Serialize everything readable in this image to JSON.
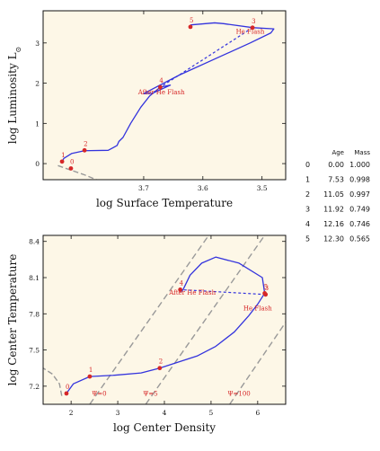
{
  "chart_data": [
    {
      "type": "line",
      "xlabel": "log Surface Temperature",
      "ylabel": "log Luminosity L",
      "ylabel_sub": "⊙",
      "xlim": [
        3.87,
        3.46
      ],
      "ylim": [
        -0.4,
        3.8
      ],
      "xticks": [
        3.7,
        3.6,
        3.5
      ],
      "yticks": [
        0,
        1,
        2,
        3
      ],
      "track": [
        [
          3.838,
          0.05
        ],
        [
          3.835,
          0.13
        ],
        [
          3.822,
          0.25
        ],
        [
          3.8,
          0.32
        ],
        [
          3.76,
          0.33
        ],
        [
          3.745,
          0.45
        ],
        [
          3.742,
          0.55
        ],
        [
          3.735,
          0.65
        ],
        [
          3.722,
          1.0
        ],
        [
          3.705,
          1.4
        ],
        [
          3.69,
          1.68
        ],
        [
          3.672,
          1.9
        ],
        [
          3.655,
          1.95
        ],
        [
          3.685,
          1.75
        ],
        [
          3.7,
          1.74
        ],
        [
          3.64,
          2.2
        ],
        [
          3.58,
          2.6
        ],
        [
          3.52,
          3.0
        ],
        [
          3.485,
          3.25
        ],
        [
          3.48,
          3.35
        ],
        [
          3.515,
          3.38
        ],
        [
          3.565,
          3.48
        ],
        [
          3.58,
          3.5
        ],
        [
          3.62,
          3.45
        ],
        [
          3.621,
          3.4
        ]
      ],
      "flash_segment": [
        [
          3.516,
          3.38
        ],
        [
          3.672,
          1.9
        ]
      ],
      "dashed_extension": [
        [
          3.845,
          -0.05
        ],
        [
          3.8,
          -0.28
        ],
        [
          3.78,
          -0.4
        ]
      ],
      "points": [
        {
          "label": "0",
          "x": 3.823,
          "y": -0.12
        },
        {
          "label": "1",
          "x": 3.838,
          "y": 0.05
        },
        {
          "label": "2",
          "x": 3.8,
          "y": 0.33
        },
        {
          "label": "3",
          "x": 3.516,
          "y": 3.38
        },
        {
          "label": "4",
          "x": 3.672,
          "y": 1.9
        },
        {
          "label": "5",
          "x": 3.621,
          "y": 3.4
        }
      ],
      "annotations": [
        {
          "text": "He Flash",
          "x": 3.52,
          "y": 3.23
        },
        {
          "text": "After He Flash",
          "x": 3.67,
          "y": 1.72
        }
      ]
    },
    {
      "type": "line",
      "xlabel": "log Center Density",
      "ylabel": "log Center Temperature",
      "xlim": [
        1.4,
        6.6
      ],
      "ylim": [
        7.05,
        8.45
      ],
      "xticks": [
        2,
        3,
        4,
        5,
        6
      ],
      "yticks": [
        7.2,
        7.5,
        7.8,
        8.1,
        8.4
      ],
      "track": [
        [
          1.9,
          7.14
        ],
        [
          2.05,
          7.22
        ],
        [
          2.4,
          7.28
        ],
        [
          2.9,
          7.29
        ],
        [
          3.5,
          7.31
        ],
        [
          3.9,
          7.35
        ],
        [
          4.3,
          7.4
        ],
        [
          4.7,
          7.45
        ],
        [
          5.1,
          7.53
        ],
        [
          5.5,
          7.65
        ],
        [
          5.8,
          7.78
        ],
        [
          6.0,
          7.88
        ],
        [
          6.15,
          7.97
        ],
        [
          6.1,
          8.1
        ],
        [
          5.6,
          8.22
        ],
        [
          5.1,
          8.27
        ],
        [
          4.8,
          8.22
        ],
        [
          4.55,
          8.12
        ],
        [
          4.4,
          8.0
        ],
        [
          4.35,
          7.98
        ]
      ],
      "flash_segment": [
        [
          6.17,
          7.96
        ],
        [
          4.34,
          8.0
        ]
      ],
      "dashed_extension": [
        [
          1.8,
          7.12
        ],
        [
          1.75,
          7.22
        ],
        [
          1.6,
          7.3
        ],
        [
          1.4,
          7.35
        ]
      ],
      "degeneracy_lines": [
        {
          "label": "Ψ=0",
          "from": [
            2.4,
            7.05
          ],
          "to": [
            4.95,
            8.45
          ]
        },
        {
          "label": "Ψ=5",
          "from": [
            3.6,
            7.05
          ],
          "to": [
            6.15,
            8.45
          ]
        },
        {
          "label": "Ψ=100",
          "from": [
            5.4,
            7.05
          ],
          "to": [
            6.6,
            7.73
          ]
        }
      ],
      "points": [
        {
          "label": "0",
          "x": 1.9,
          "y": 7.14
        },
        {
          "label": "1",
          "x": 2.4,
          "y": 7.28
        },
        {
          "label": "2",
          "x": 3.9,
          "y": 7.35
        },
        {
          "label": "3",
          "x": 6.17,
          "y": 7.96
        },
        {
          "label": "4",
          "x": 4.34,
          "y": 8.0
        },
        {
          "label": "5",
          "x": 6.15,
          "y": 7.97
        }
      ],
      "annotations": [
        {
          "text": "He Flash",
          "x": 6.0,
          "y": 7.83
        },
        {
          "text": "After He Flash",
          "x": 4.6,
          "y": 7.96
        }
      ]
    }
  ],
  "table": {
    "headers": [
      "",
      "Age",
      "Mass"
    ],
    "rows": [
      [
        "0",
        "0.00",
        "1.000"
      ],
      [
        "1",
        "7.53",
        "0.998"
      ],
      [
        "2",
        "11.05",
        "0.997"
      ],
      [
        "3",
        "11.92",
        "0.749"
      ],
      [
        "4",
        "12.16",
        "0.746"
      ],
      [
        "5",
        "12.30",
        "0.565"
      ]
    ]
  },
  "colors": {
    "track": "#3333dd",
    "points": "#d62728",
    "background": "#fdf7e7",
    "grey_dash": "#999999"
  }
}
